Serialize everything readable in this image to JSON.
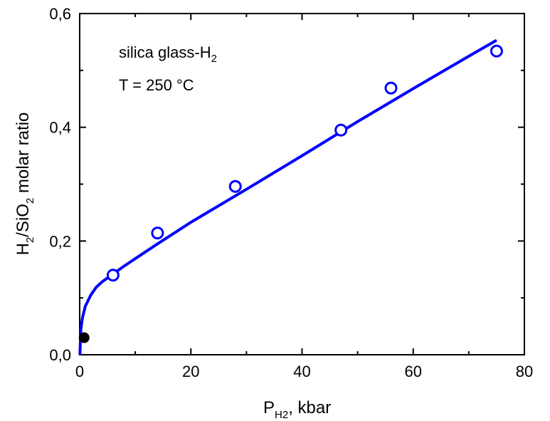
{
  "chart_data": {
    "type": "scatter",
    "xlabel": {
      "main": "P",
      "sub": "H2",
      "rest": ", kbar"
    },
    "ylabel": {
      "p1": "H",
      "s1": "2",
      "p2": "/SiO",
      "s2": "2",
      "p3": " molar ratio"
    },
    "annotation": {
      "line1_main": "silica glass-H",
      "line1_sub": "2",
      "line2": "T = 250 °C"
    },
    "xlim": [
      0,
      80
    ],
    "ylim": [
      0,
      0.6
    ],
    "x_ticks": [
      0,
      20,
      40,
      60,
      80
    ],
    "x_tick_labels": [
      "0",
      "20",
      "40",
      "60",
      "80"
    ],
    "y_ticks": [
      0,
      0.2,
      0.4,
      0.6
    ],
    "y_tick_labels": [
      "0,0",
      "0,2",
      "0,4",
      "0,6"
    ],
    "grid": false,
    "series": [
      {
        "kind": "open-circle-markers",
        "color": "#0000ff",
        "points": [
          {
            "x": 6,
            "y": 0.14
          },
          {
            "x": 14,
            "y": 0.214
          },
          {
            "x": 28,
            "y": 0.296
          },
          {
            "x": 47,
            "y": 0.395
          },
          {
            "x": 56,
            "y": 0.469
          },
          {
            "x": 75,
            "y": 0.534
          }
        ]
      },
      {
        "kind": "filled-circle-marker",
        "color": "#000000",
        "points": [
          {
            "x": 0.8,
            "y": 0.03
          }
        ]
      },
      {
        "kind": "fit-line",
        "color": "#0000ff",
        "points": [
          {
            "x": 0.04,
            "y": 0.0
          },
          {
            "x": 0.2,
            "y": 0.045
          },
          {
            "x": 0.5,
            "y": 0.065
          },
          {
            "x": 1,
            "y": 0.085
          },
          {
            "x": 2,
            "y": 0.105
          },
          {
            "x": 3,
            "y": 0.119
          },
          {
            "x": 4,
            "y": 0.128
          },
          {
            "x": 6,
            "y": 0.142
          },
          {
            "x": 8,
            "y": 0.156
          },
          {
            "x": 10,
            "y": 0.169
          },
          {
            "x": 14,
            "y": 0.195
          },
          {
            "x": 20,
            "y": 0.233
          },
          {
            "x": 30,
            "y": 0.291
          },
          {
            "x": 40,
            "y": 0.35
          },
          {
            "x": 50,
            "y": 0.41
          },
          {
            "x": 60,
            "y": 0.468
          },
          {
            "x": 70,
            "y": 0.525
          },
          {
            "x": 75,
            "y": 0.553
          }
        ]
      }
    ]
  }
}
